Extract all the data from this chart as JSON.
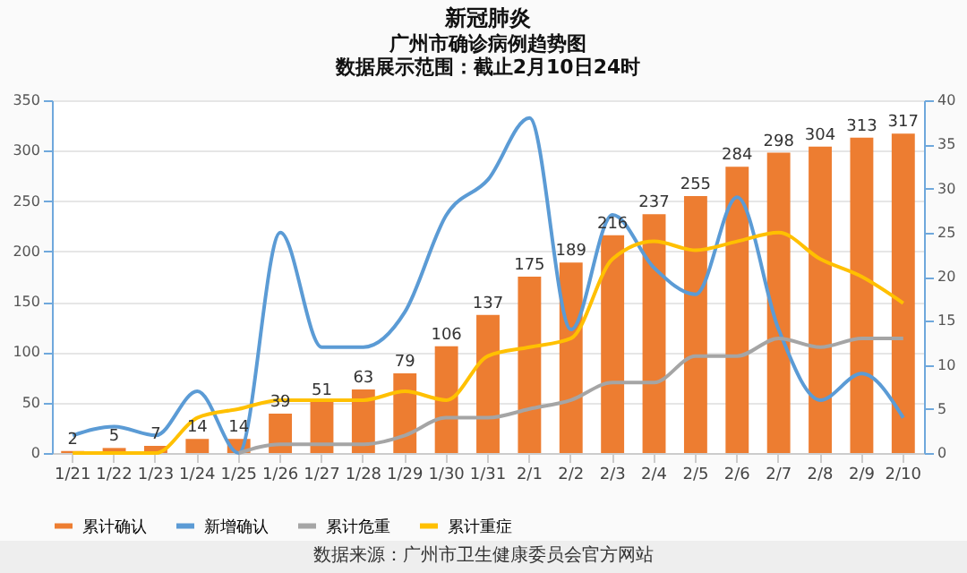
{
  "chart_data": {
    "type": "bar",
    "title": "新冠肺炎",
    "subtitle": "广州市确诊病例趋势图",
    "categories": [
      "1/21",
      "1/22",
      "1/23",
      "1/24",
      "1/25",
      "1/26",
      "1/27",
      "1/28",
      "1/29",
      "1/30",
      "1/31",
      "2/1",
      "2/2",
      "2/3",
      "2/4",
      "2/5",
      "2/6",
      "2/7",
      "2/8",
      "2/9",
      "2/10"
    ],
    "series": [
      {
        "name": "累计确认",
        "color": "#ed7d31",
        "values": [
          2,
          5,
          7,
          14,
          14,
          39,
          51,
          63,
          79,
          106,
          137,
          175,
          189,
          216,
          237,
          255,
          284,
          298,
          304,
          313,
          317
        ],
        "value_labels": [
          "2",
          "5",
          "7",
          "14",
          "14",
          "39",
          "51",
          "63",
          "79",
          "106",
          "137",
          "175",
          "189",
          "216",
          "237",
          "255",
          "284",
          "298",
          "304",
          "313",
          "317"
        ]
      },
      {
        "name": "新增确认",
        "type": "line",
        "axis": "y2",
        "color": "#5b9bd5",
        "values": [
          2,
          3,
          2,
          7,
          0,
          25,
          12,
          12,
          16,
          27,
          31,
          38,
          14,
          27,
          21,
          18,
          29,
          14,
          6,
          9,
          4
        ]
      },
      {
        "name": "累计危重",
        "type": "line",
        "axis": "y2",
        "color": "#a5a5a5",
        "values": [
          null,
          null,
          null,
          null,
          0,
          1,
          1,
          1,
          2,
          4,
          4,
          5,
          6,
          8,
          8,
          11,
          11,
          13,
          12,
          13,
          13
        ]
      },
      {
        "name": "累计重症",
        "type": "line",
        "axis": "y2",
        "color": "#ffc000",
        "values": [
          0,
          0,
          0,
          4,
          5,
          6,
          6,
          6,
          7,
          6,
          11,
          12,
          13,
          22,
          24,
          23,
          24,
          25,
          22,
          20,
          17
        ]
      }
    ],
    "ylim": [
      0,
      350
    ],
    "yticks": [
      0,
      50,
      100,
      150,
      200,
      250,
      300,
      350
    ],
    "y2lim": [
      0,
      40
    ],
    "y2ticks": [
      0,
      5,
      10,
      15,
      20,
      25,
      30,
      35,
      40
    ],
    "grid": "y",
    "legend": "bottom",
    "marker": "none",
    "line_style": "solid",
    "annotations": [
      "数据展示范围：截止2月10日24时",
      "数据来源：广州市卫生健康委员会官方网站"
    ]
  }
}
